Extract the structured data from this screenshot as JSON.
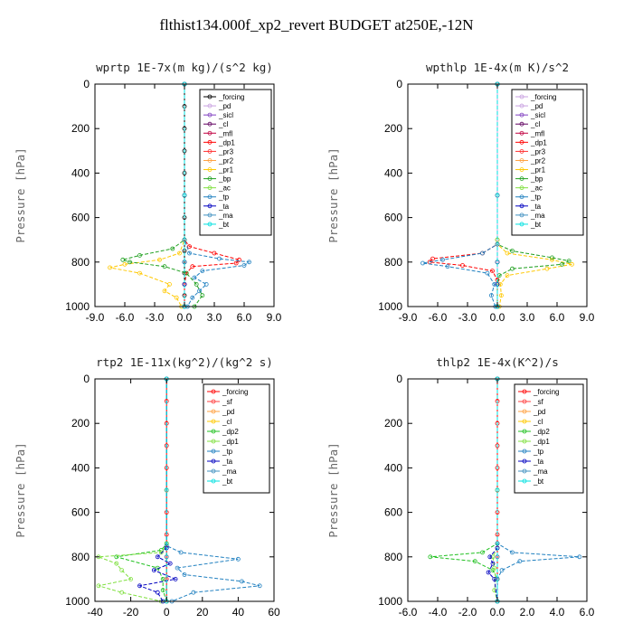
{
  "title": "flthist134.000f_xp2_revert  BUDGET at250E,-12N",
  "ylabel": "Pressure [hPa]",
  "chart_data": [
    {
      "type": "line",
      "title": "wprtp  1E-7x(m kg)/(s^2 kg)",
      "xlim": [
        -9,
        9
      ],
      "xticks": [
        "-9.0",
        "-6.0",
        "-3.0",
        "0.0",
        "3.0",
        "6.0",
        "9.0"
      ],
      "ylim": [
        0,
        1000
      ],
      "yticks": [
        "0",
        "200",
        "400",
        "600",
        "800",
        "1000"
      ],
      "series": [
        {
          "name": "_forcing",
          "color": "#000000",
          "y": [
            0,
            100,
            200,
            300,
            400,
            500,
            600,
            700,
            750,
            800,
            850,
            900,
            950,
            1000
          ],
          "x": [
            0,
            0,
            0,
            0,
            0,
            0,
            0,
            0,
            0,
            0,
            0,
            0,
            0,
            0
          ]
        },
        {
          "name": "_pd",
          "color": "#c8a0e0",
          "y": [
            0,
            500,
            800,
            1000
          ],
          "x": [
            0,
            0,
            0,
            0
          ]
        },
        {
          "name": "_sicl",
          "color": "#8040c0",
          "y": [
            0,
            500,
            800,
            1000
          ],
          "x": [
            0,
            0,
            0,
            0
          ]
        },
        {
          "name": "_cl",
          "color": "#600060",
          "y": [
            0,
            500,
            800,
            1000
          ],
          "x": [
            0,
            0,
            0,
            0
          ]
        },
        {
          "name": "_mfl",
          "color": "#c00040",
          "y": [
            0,
            500,
            800,
            1000
          ],
          "x": [
            0,
            0,
            0,
            0
          ]
        },
        {
          "name": "_dp1",
          "color": "#ff0000",
          "y": [
            0,
            700,
            730,
            760,
            790,
            805,
            820,
            850,
            900,
            1000
          ],
          "x": [
            0,
            0,
            0.5,
            3.0,
            5.5,
            5.2,
            0.8,
            0.2,
            0,
            0
          ]
        },
        {
          "name": "_pr3",
          "color": "#ff3030",
          "y": [
            0,
            700,
            800,
            1000
          ],
          "x": [
            0,
            0,
            0,
            0
          ]
        },
        {
          "name": "_pr2",
          "color": "#ffa040",
          "y": [
            0,
            700,
            800,
            1000
          ],
          "x": [
            0,
            0,
            0,
            0
          ]
        },
        {
          "name": "_pr1",
          "color": "#ffc800",
          "y": [
            0,
            700,
            760,
            790,
            810,
            825,
            850,
            900,
            930,
            960,
            1000
          ],
          "x": [
            0,
            0,
            -0.5,
            -2.5,
            -6.0,
            -7.5,
            -4.5,
            -1.5,
            -2.0,
            -0.8,
            -0.3
          ]
        },
        {
          "name": "_bp",
          "color": "#20a020",
          "y": [
            0,
            700,
            740,
            770,
            790,
            800,
            820,
            850,
            900,
            950,
            1000
          ],
          "x": [
            0,
            0,
            -1.2,
            -4.5,
            -6.2,
            -5.5,
            -2.0,
            0.2,
            1.2,
            1.8,
            1.0
          ]
        },
        {
          "name": "_ac",
          "color": "#80e040",
          "y": [
            0,
            700,
            800,
            1000
          ],
          "x": [
            0,
            0,
            0,
            0
          ]
        },
        {
          "name": "_tp",
          "color": "#2080c0",
          "y": [
            0,
            700,
            760,
            785,
            800,
            815,
            840,
            870,
            900,
            930,
            960,
            1000
          ],
          "x": [
            0,
            0,
            0.5,
            3.5,
            6.5,
            6.0,
            1.8,
            1.0,
            2.2,
            1.5,
            0.8,
            0.3
          ]
        },
        {
          "name": "_ta",
          "color": "#0000c0",
          "y": [
            0,
            800,
            900,
            1000
          ],
          "x": [
            0,
            0,
            0,
            0
          ]
        },
        {
          "name": "_ma",
          "color": "#4090c0",
          "y": [
            0,
            800,
            1000
          ],
          "x": [
            0,
            0,
            0
          ]
        },
        {
          "name": "_bt",
          "color": "#00e0e0",
          "y": [
            0,
            500,
            1000
          ],
          "x": [
            0,
            0,
            0
          ]
        }
      ]
    },
    {
      "type": "line",
      "title": "wpthlp  1E-4x(m K)/s^2",
      "xlim": [
        -9,
        9
      ],
      "xticks": [
        "-9.0",
        "-6.0",
        "-3.0",
        "0.0",
        "3.0",
        "6.0",
        "9.0"
      ],
      "ylim": [
        0,
        1000
      ],
      "yticks": [
        "0",
        "200",
        "400",
        "600",
        "800",
        "1000"
      ],
      "series": [
        {
          "name": "_forcing",
          "color": "#c8a0e0",
          "y": [
            0,
            500,
            800,
            1000
          ],
          "x": [
            0,
            0,
            0,
            0
          ]
        },
        {
          "name": "_pd",
          "color": "#c8a0e0",
          "y": [
            0,
            500,
            800,
            1000
          ],
          "x": [
            0,
            0,
            0,
            0
          ]
        },
        {
          "name": "_sicl",
          "color": "#8040c0",
          "y": [
            0,
            500,
            800,
            1000
          ],
          "x": [
            0,
            0,
            0,
            0
          ]
        },
        {
          "name": "_cl",
          "color": "#600060",
          "y": [
            0,
            500,
            800,
            1000
          ],
          "x": [
            0,
            0,
            0,
            0
          ]
        },
        {
          "name": "_mfl",
          "color": "#c00040",
          "y": [
            0,
            500,
            800,
            1000
          ],
          "x": [
            0,
            0,
            0,
            0
          ]
        },
        {
          "name": "_dp1",
          "color": "#ff0000",
          "y": [
            0,
            720,
            760,
            785,
            800,
            815,
            840,
            880,
            1000
          ],
          "x": [
            0,
            0,
            -1.5,
            -6.5,
            -6.8,
            -3.5,
            -0.5,
            0,
            0
          ]
        },
        {
          "name": "_pr3",
          "color": "#ff3030",
          "y": [
            0,
            700,
            800,
            1000
          ],
          "x": [
            0,
            0,
            0,
            0
          ]
        },
        {
          "name": "_pr2",
          "color": "#ffa040",
          "y": [
            0,
            700,
            800,
            1000
          ],
          "x": [
            0,
            0,
            0,
            0
          ]
        },
        {
          "name": "_pr1",
          "color": "#ffc800",
          "y": [
            0,
            720,
            760,
            790,
            810,
            830,
            860,
            900,
            950,
            1000
          ],
          "x": [
            0,
            0,
            1.0,
            5.5,
            7.5,
            5.0,
            1.0,
            0.3,
            0.4,
            0.2
          ]
        },
        {
          "name": "_bp",
          "color": "#20a020",
          "y": [
            0,
            720,
            750,
            780,
            795,
            810,
            830,
            860,
            900,
            1000
          ],
          "x": [
            0,
            0,
            1.5,
            5.5,
            7.2,
            6.5,
            1.5,
            0.2,
            0,
            0
          ]
        },
        {
          "name": "_ac",
          "color": "#80e040",
          "y": [
            0,
            700,
            800,
            1000
          ],
          "x": [
            0,
            0,
            0,
            0
          ]
        },
        {
          "name": "_tp",
          "color": "#2080c0",
          "y": [
            0,
            720,
            760,
            790,
            805,
            820,
            850,
            900,
            950,
            1000
          ],
          "x": [
            0,
            0,
            -1.5,
            -5.5,
            -7.5,
            -5.0,
            -1.0,
            -0.3,
            -0.6,
            -0.2
          ]
        },
        {
          "name": "_ta",
          "color": "#0000c0",
          "y": [
            0,
            800,
            900,
            1000
          ],
          "x": [
            0,
            0,
            0,
            0
          ]
        },
        {
          "name": "_ma",
          "color": "#4090c0",
          "y": [
            0,
            800,
            1000
          ],
          "x": [
            0,
            0,
            0
          ]
        },
        {
          "name": "_bt",
          "color": "#00e0e0",
          "y": [
            0,
            500,
            1000
          ],
          "x": [
            0,
            0,
            0
          ]
        }
      ]
    },
    {
      "type": "line",
      "title": "rtp2  1E-11x(kg^2)/(kg^2 s)",
      "xlim": [
        -40,
        60
      ],
      "xticks": [
        "-40",
        "-20",
        "0",
        "20",
        "40",
        "60"
      ],
      "ylim": [
        0,
        1000
      ],
      "yticks": [
        "0",
        "200",
        "400",
        "600",
        "800",
        "1000"
      ],
      "series": [
        {
          "name": "_forcing",
          "color": "#ff0000",
          "y": [
            0,
            100,
            200,
            300,
            400,
            500,
            600,
            700,
            800,
            900,
            1000
          ],
          "x": [
            0,
            0,
            0,
            0,
            0,
            0,
            0,
            0,
            0,
            0,
            0
          ]
        },
        {
          "name": "_sf",
          "color": "#ff4040",
          "y": [
            0,
            500,
            1000
          ],
          "x": [
            0,
            0,
            0
          ]
        },
        {
          "name": "_pd",
          "color": "#ffa040",
          "y": [
            0,
            500,
            1000
          ],
          "x": [
            0,
            0,
            0
          ]
        },
        {
          "name": "_cl",
          "color": "#ffc800",
          "y": [
            0,
            500,
            1000
          ],
          "x": [
            0,
            0,
            0
          ]
        },
        {
          "name": "_dp2",
          "color": "#20c020",
          "y": [
            0,
            740,
            770,
            800,
            850,
            900,
            950,
            1000
          ],
          "x": [
            0,
            0,
            -3,
            -28,
            -5,
            -2,
            -2,
            0
          ]
        },
        {
          "name": "_dp1",
          "color": "#80e040",
          "y": [
            0,
            750,
            780,
            800,
            830,
            860,
            900,
            930,
            960,
            1000
          ],
          "x": [
            0,
            0,
            -3,
            -38,
            -28,
            -25,
            -20,
            -38,
            -25,
            -3
          ]
        },
        {
          "name": "_tp",
          "color": "#2080c0",
          "y": [
            0,
            750,
            780,
            810,
            850,
            880,
            910,
            930,
            960,
            1000
          ],
          "x": [
            0,
            0,
            8,
            40,
            6,
            10,
            42,
            52,
            15,
            3
          ]
        },
        {
          "name": "_ta",
          "color": "#0000c0",
          "y": [
            0,
            760,
            800,
            830,
            860,
            900,
            930,
            960,
            1000
          ],
          "x": [
            0,
            0,
            -5,
            2,
            -7,
            5,
            -15,
            -5,
            -2
          ]
        },
        {
          "name": "_ma",
          "color": "#4090c0",
          "y": [
            0,
            800,
            1000
          ],
          "x": [
            0,
            0,
            0
          ]
        },
        {
          "name": "_bt",
          "color": "#00e0e0",
          "y": [
            0,
            500,
            1000
          ],
          "x": [
            0,
            0,
            0
          ]
        }
      ]
    },
    {
      "type": "line",
      "title": "thlp2  1E-4x(K^2)/s",
      "xlim": [
        -6,
        6
      ],
      "xticks": [
        "-6.0",
        "-4.0",
        "-2.0",
        "0.0",
        "2.0",
        "4.0",
        "6.0"
      ],
      "ylim": [
        0,
        1000
      ],
      "yticks": [
        "0",
        "200",
        "400",
        "600",
        "800",
        "1000"
      ],
      "series": [
        {
          "name": "_forcing",
          "color": "#ff0000",
          "y": [
            0,
            100,
            200,
            300,
            400,
            500,
            600,
            700,
            800,
            900,
            1000
          ],
          "x": [
            0,
            0,
            0,
            0,
            0,
            0,
            0,
            0,
            0,
            0,
            0
          ]
        },
        {
          "name": "_sf",
          "color": "#ff4040",
          "y": [
            0,
            500,
            1000
          ],
          "x": [
            0,
            0,
            0
          ]
        },
        {
          "name": "_pd",
          "color": "#ffa040",
          "y": [
            0,
            500,
            1000
          ],
          "x": [
            0,
            0,
            0
          ]
        },
        {
          "name": "_cl",
          "color": "#ffc800",
          "y": [
            0,
            500,
            1000
          ],
          "x": [
            0,
            0,
            0
          ]
        },
        {
          "name": "_dp2",
          "color": "#20c020",
          "y": [
            0,
            740,
            780,
            800,
            820,
            860,
            900,
            1000
          ],
          "x": [
            0,
            0,
            -1.0,
            -4.5,
            -1.5,
            -0.3,
            0,
            0
          ]
        },
        {
          "name": "_dp1",
          "color": "#80e040",
          "y": [
            0,
            760,
            800,
            850,
            900,
            950,
            1000
          ],
          "x": [
            0,
            0,
            -0.3,
            -0.2,
            -0.1,
            -0.2,
            0
          ]
        },
        {
          "name": "_tp",
          "color": "#2080c0",
          "y": [
            0,
            740,
            780,
            800,
            820,
            860,
            900,
            1000
          ],
          "x": [
            0,
            0,
            1.0,
            5.5,
            1.5,
            0.3,
            0,
            0
          ]
        },
        {
          "name": "_ta",
          "color": "#0000c0",
          "y": [
            0,
            760,
            800,
            830,
            870,
            900,
            1000
          ],
          "x": [
            0,
            0,
            -0.5,
            -0.3,
            -0.6,
            -0.2,
            0
          ]
        },
        {
          "name": "_ma",
          "color": "#4090c0",
          "y": [
            0,
            800,
            1000
          ],
          "x": [
            0,
            0,
            0
          ]
        },
        {
          "name": "_bt",
          "color": "#00e0e0",
          "y": [
            0,
            500,
            1000
          ],
          "x": [
            0,
            0,
            0
          ]
        }
      ]
    }
  ]
}
